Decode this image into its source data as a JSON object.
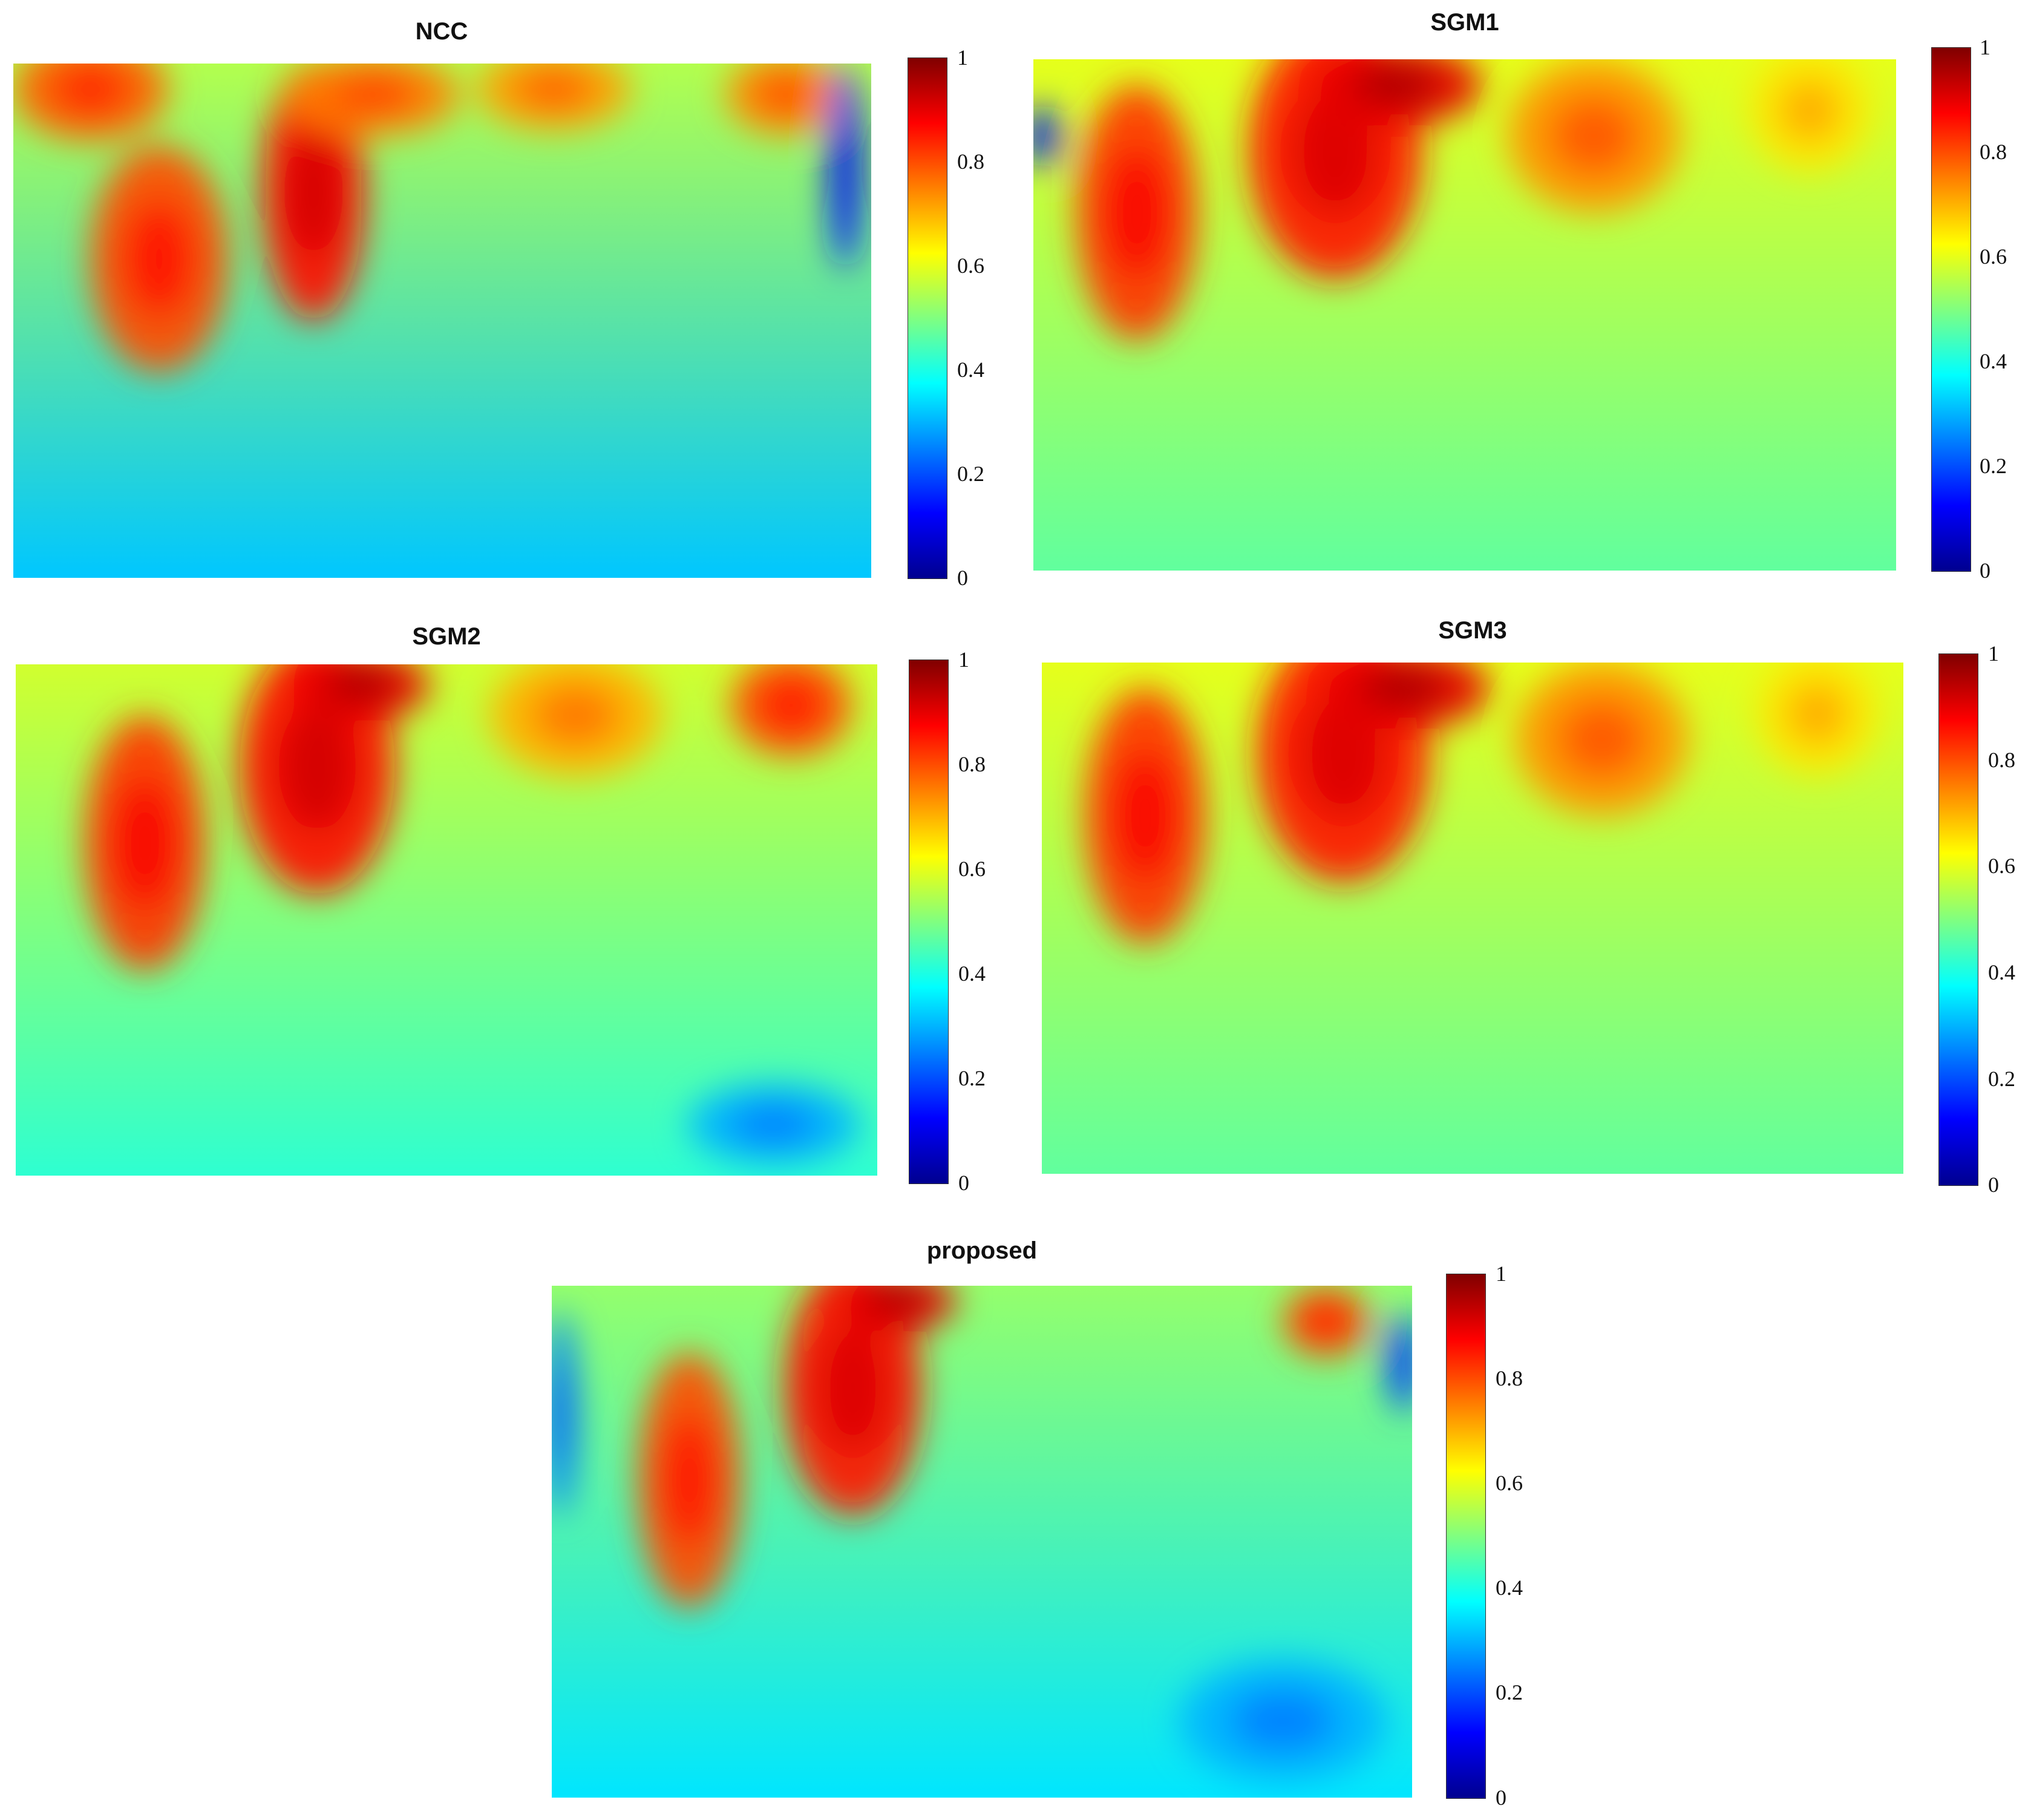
{
  "colormap": [
    "#00008f",
    "#0000ff",
    "#0080ff",
    "#00ffff",
    "#80ff80",
    "#ffff00",
    "#ff8000",
    "#ff0000",
    "#800000"
  ],
  "chart_data": [
    {
      "type": "heatmap",
      "title": "NCC",
      "colorbar": {
        "range": [
          0,
          1
        ],
        "ticks": [
          "0",
          "0.2",
          "0.4",
          "0.6",
          "0.8",
          "1"
        ]
      },
      "blobs": [
        {
          "x": 0.09,
          "y": 0.05,
          "rx": 0.09,
          "ry": 0.1,
          "v": 0.78
        },
        {
          "x": 0.17,
          "y": 0.38,
          "rx": 0.08,
          "ry": 0.22,
          "v": 0.8
        },
        {
          "x": 0.35,
          "y": 0.25,
          "rx": 0.06,
          "ry": 0.25,
          "v": 0.86
        },
        {
          "x": 0.42,
          "y": 0.06,
          "rx": 0.1,
          "ry": 0.08,
          "v": 0.75
        },
        {
          "x": 0.63,
          "y": 0.05,
          "rx": 0.09,
          "ry": 0.08,
          "v": 0.72
        },
        {
          "x": 0.9,
          "y": 0.06,
          "rx": 0.07,
          "ry": 0.08,
          "v": 0.74
        },
        {
          "x": 0.97,
          "y": 0.2,
          "rx": 0.02,
          "ry": 0.2,
          "v": 0.15
        }
      ],
      "field": {
        "top": 0.55,
        "bottom": 0.32
      }
    },
    {
      "type": "heatmap",
      "title": "SGM1",
      "colorbar": {
        "range": [
          0,
          1
        ],
        "ticks": [
          "0",
          "0.2",
          "0.4",
          "0.6",
          "0.8",
          "1"
        ]
      },
      "blobs": [
        {
          "x": 0.12,
          "y": 0.3,
          "rx": 0.07,
          "ry": 0.25,
          "v": 0.82
        },
        {
          "x": 0.35,
          "y": 0.18,
          "rx": 0.1,
          "ry": 0.25,
          "v": 0.85
        },
        {
          "x": 0.42,
          "y": 0.05,
          "rx": 0.1,
          "ry": 0.08,
          "v": 0.9
        },
        {
          "x": 0.65,
          "y": 0.15,
          "rx": 0.1,
          "ry": 0.15,
          "v": 0.73
        },
        {
          "x": 0.9,
          "y": 0.1,
          "rx": 0.07,
          "ry": 0.12,
          "v": 0.65
        },
        {
          "x": 0.01,
          "y": 0.15,
          "rx": 0.02,
          "ry": 0.06,
          "v": 0.15
        }
      ],
      "field": {
        "top": 0.6,
        "bottom": 0.47
      }
    },
    {
      "type": "heatmap",
      "title": "SGM2",
      "colorbar": {
        "range": [
          0,
          1
        ],
        "ticks": [
          "0",
          "0.2",
          "0.4",
          "0.6",
          "0.8",
          "1"
        ]
      },
      "blobs": [
        {
          "x": 0.15,
          "y": 0.35,
          "rx": 0.07,
          "ry": 0.25,
          "v": 0.82
        },
        {
          "x": 0.35,
          "y": 0.2,
          "rx": 0.09,
          "ry": 0.25,
          "v": 0.86
        },
        {
          "x": 0.4,
          "y": 0.04,
          "rx": 0.08,
          "ry": 0.07,
          "v": 0.9
        },
        {
          "x": 0.65,
          "y": 0.1,
          "rx": 0.1,
          "ry": 0.12,
          "v": 0.7
        },
        {
          "x": 0.9,
          "y": 0.08,
          "rx": 0.07,
          "ry": 0.1,
          "v": 0.8
        },
        {
          "x": 0.88,
          "y": 0.9,
          "rx": 0.1,
          "ry": 0.08,
          "v": 0.3
        }
      ],
      "field": {
        "top": 0.58,
        "bottom": 0.42
      }
    },
    {
      "type": "heatmap",
      "title": "SGM3",
      "colorbar": {
        "range": [
          0,
          1
        ],
        "ticks": [
          "0",
          "0.2",
          "0.4",
          "0.6",
          "0.8",
          "1"
        ]
      },
      "blobs": [
        {
          "x": 0.12,
          "y": 0.3,
          "rx": 0.07,
          "ry": 0.25,
          "v": 0.82
        },
        {
          "x": 0.35,
          "y": 0.18,
          "rx": 0.1,
          "ry": 0.25,
          "v": 0.85
        },
        {
          "x": 0.42,
          "y": 0.05,
          "rx": 0.1,
          "ry": 0.08,
          "v": 0.9
        },
        {
          "x": 0.65,
          "y": 0.15,
          "rx": 0.1,
          "ry": 0.15,
          "v": 0.73
        },
        {
          "x": 0.9,
          "y": 0.1,
          "rx": 0.07,
          "ry": 0.12,
          "v": 0.65
        }
      ],
      "field": {
        "top": 0.6,
        "bottom": 0.47
      }
    },
    {
      "type": "heatmap",
      "title": "proposed",
      "colorbar": {
        "range": [
          0,
          1
        ],
        "ticks": [
          "0",
          "0.2",
          "0.4",
          "0.6",
          "0.8",
          "1"
        ]
      },
      "blobs": [
        {
          "x": 0.16,
          "y": 0.38,
          "rx": 0.06,
          "ry": 0.25,
          "v": 0.8
        },
        {
          "x": 0.35,
          "y": 0.2,
          "rx": 0.08,
          "ry": 0.25,
          "v": 0.85
        },
        {
          "x": 0.4,
          "y": 0.03,
          "rx": 0.07,
          "ry": 0.06,
          "v": 0.9
        },
        {
          "x": 0.9,
          "y": 0.07,
          "rx": 0.05,
          "ry": 0.07,
          "v": 0.8
        },
        {
          "x": 0.99,
          "y": 0.15,
          "rx": 0.02,
          "ry": 0.1,
          "v": 0.2
        },
        {
          "x": 0.01,
          "y": 0.25,
          "rx": 0.02,
          "ry": 0.2,
          "v": 0.25
        },
        {
          "x": 0.85,
          "y": 0.85,
          "rx": 0.12,
          "ry": 0.12,
          "v": 0.3
        }
      ],
      "field": {
        "top": 0.52,
        "bottom": 0.35
      }
    }
  ]
}
